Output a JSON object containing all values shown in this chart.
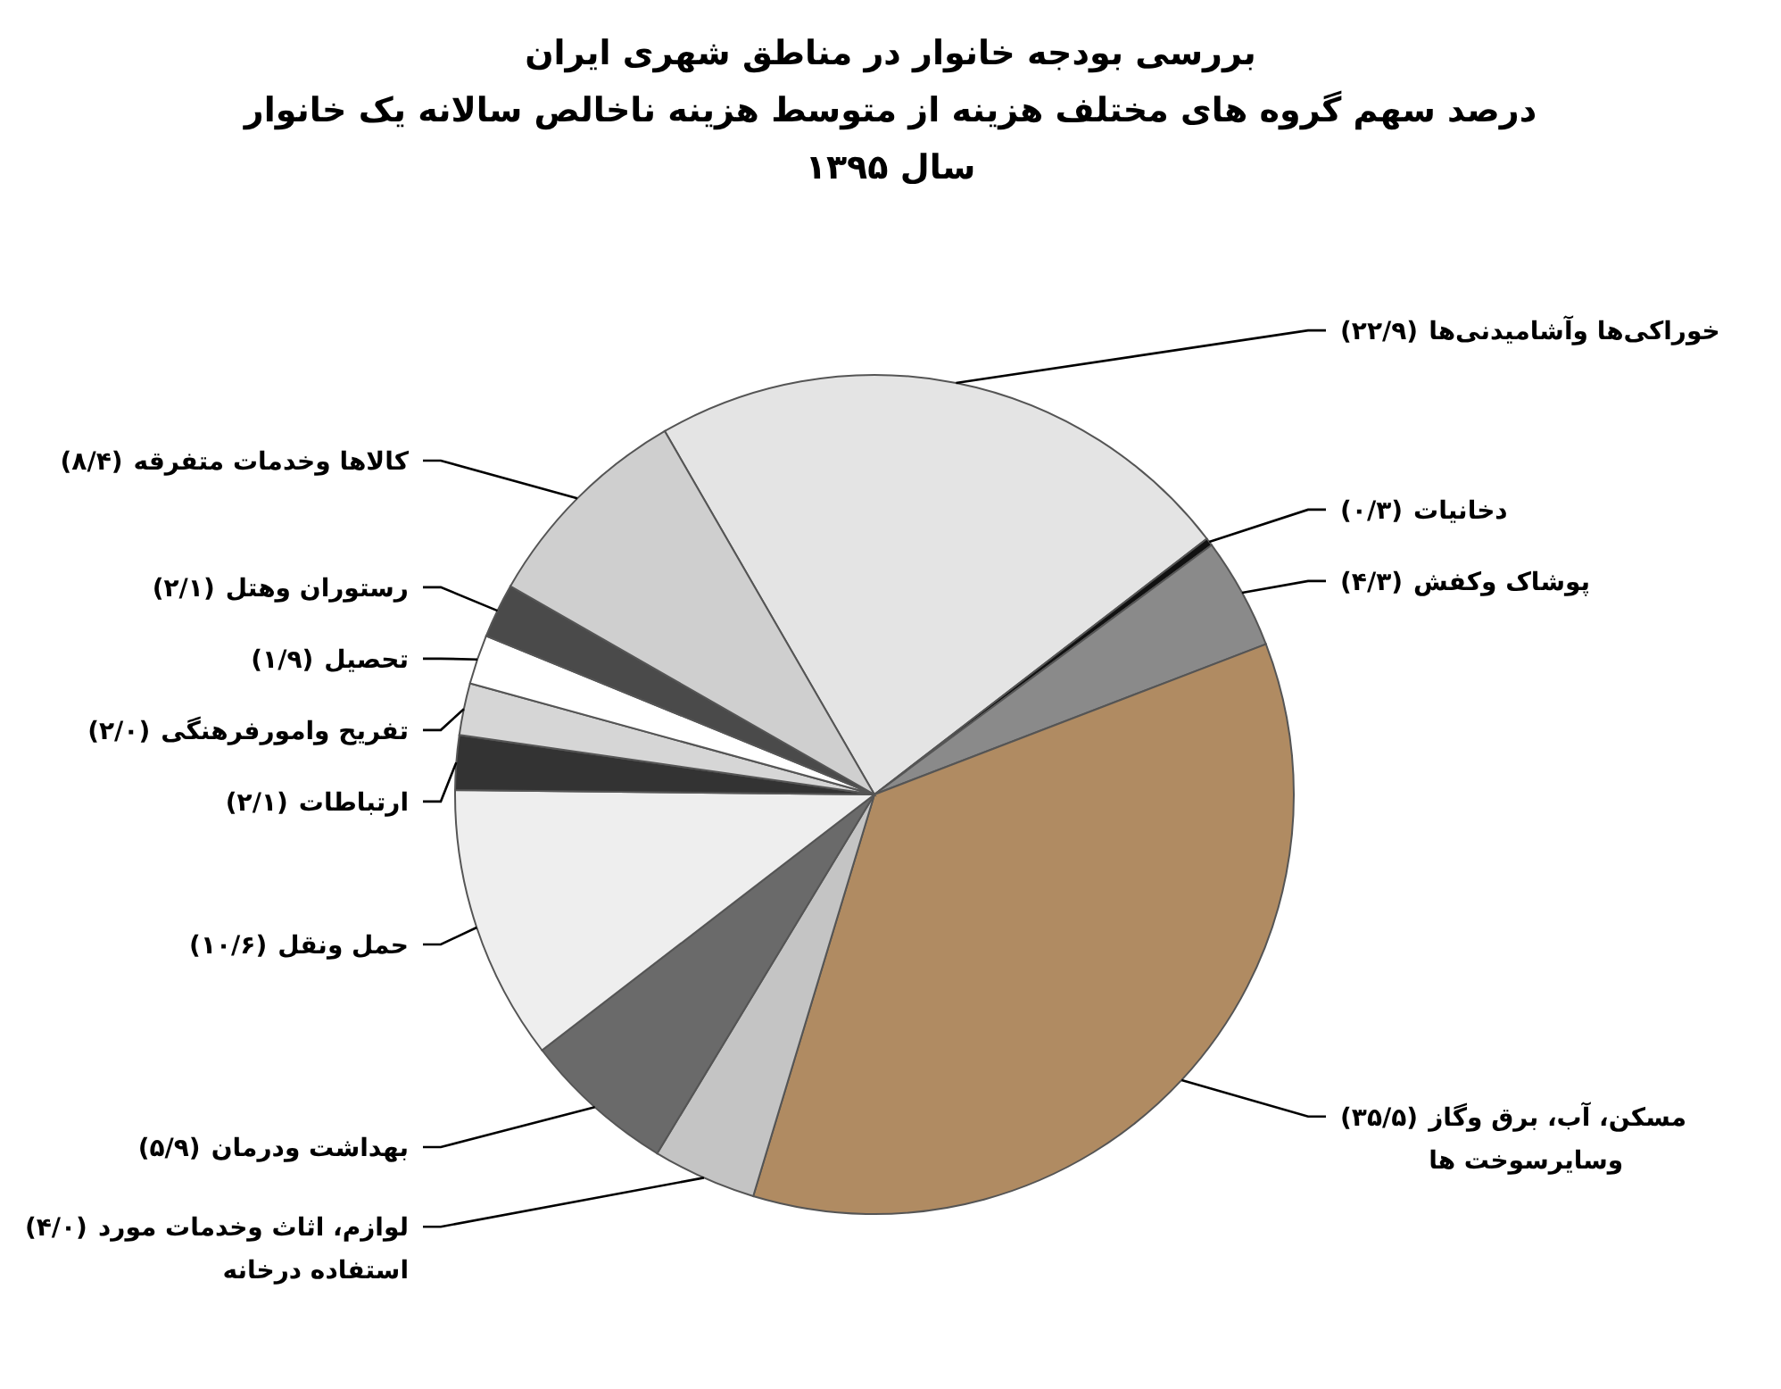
{
  "chart_data": {
    "type": "pie",
    "title": "بررسی بودجه خانوار در مناطق شهری ایران",
    "subtitle": "درصد سهم گروه های مختلف هزینه از متوسط هزینه ناخالص سالانه یک خانوار\nسال ۱۳۹۵",
    "categories": [
      "خوراکی‌ها وآشامیدنی‌ها",
      "دخانیات",
      "پوشاک وکفش",
      "مسکن، آب، برق وگاز\nوسایرسوخت ها",
      "لوازم، اثاث وخدمات مورد\nاستفاده درخانه",
      "بهداشت ودرمان",
      "حمل ونقل",
      "ارتباطات",
      "تفریح وامورفرهنگی",
      "تحصیل",
      "رستوران وهتل",
      "کالاها وخدمات متفرقه"
    ],
    "values": [
      22.9,
      0.3,
      4.3,
      35.5,
      4.0,
      5.9,
      10.6,
      2.1,
      2.0,
      1.9,
      2.1,
      8.4
    ],
    "value_labels": [
      "(۲۲/۹)",
      "(۰/۳)",
      "(۴/۳)",
      "(۳۵/۵)",
      "(۴/۰)",
      "(۵/۹)",
      "(۱۰/۶)",
      "(۲/۱)",
      "(۲/۰)",
      "(۱/۹)",
      "(۲/۱)",
      "(۸/۴)"
    ],
    "colors": [
      "#e4e4e4",
      "#111111",
      "#8a8a8a",
      "#b08b62",
      "#c4c4c4",
      "#6a6a6a",
      "#eeeeee",
      "#333333",
      "#d6d6d6",
      "#ffffff",
      "#4a4a4a",
      "#cfcfcf"
    ]
  }
}
